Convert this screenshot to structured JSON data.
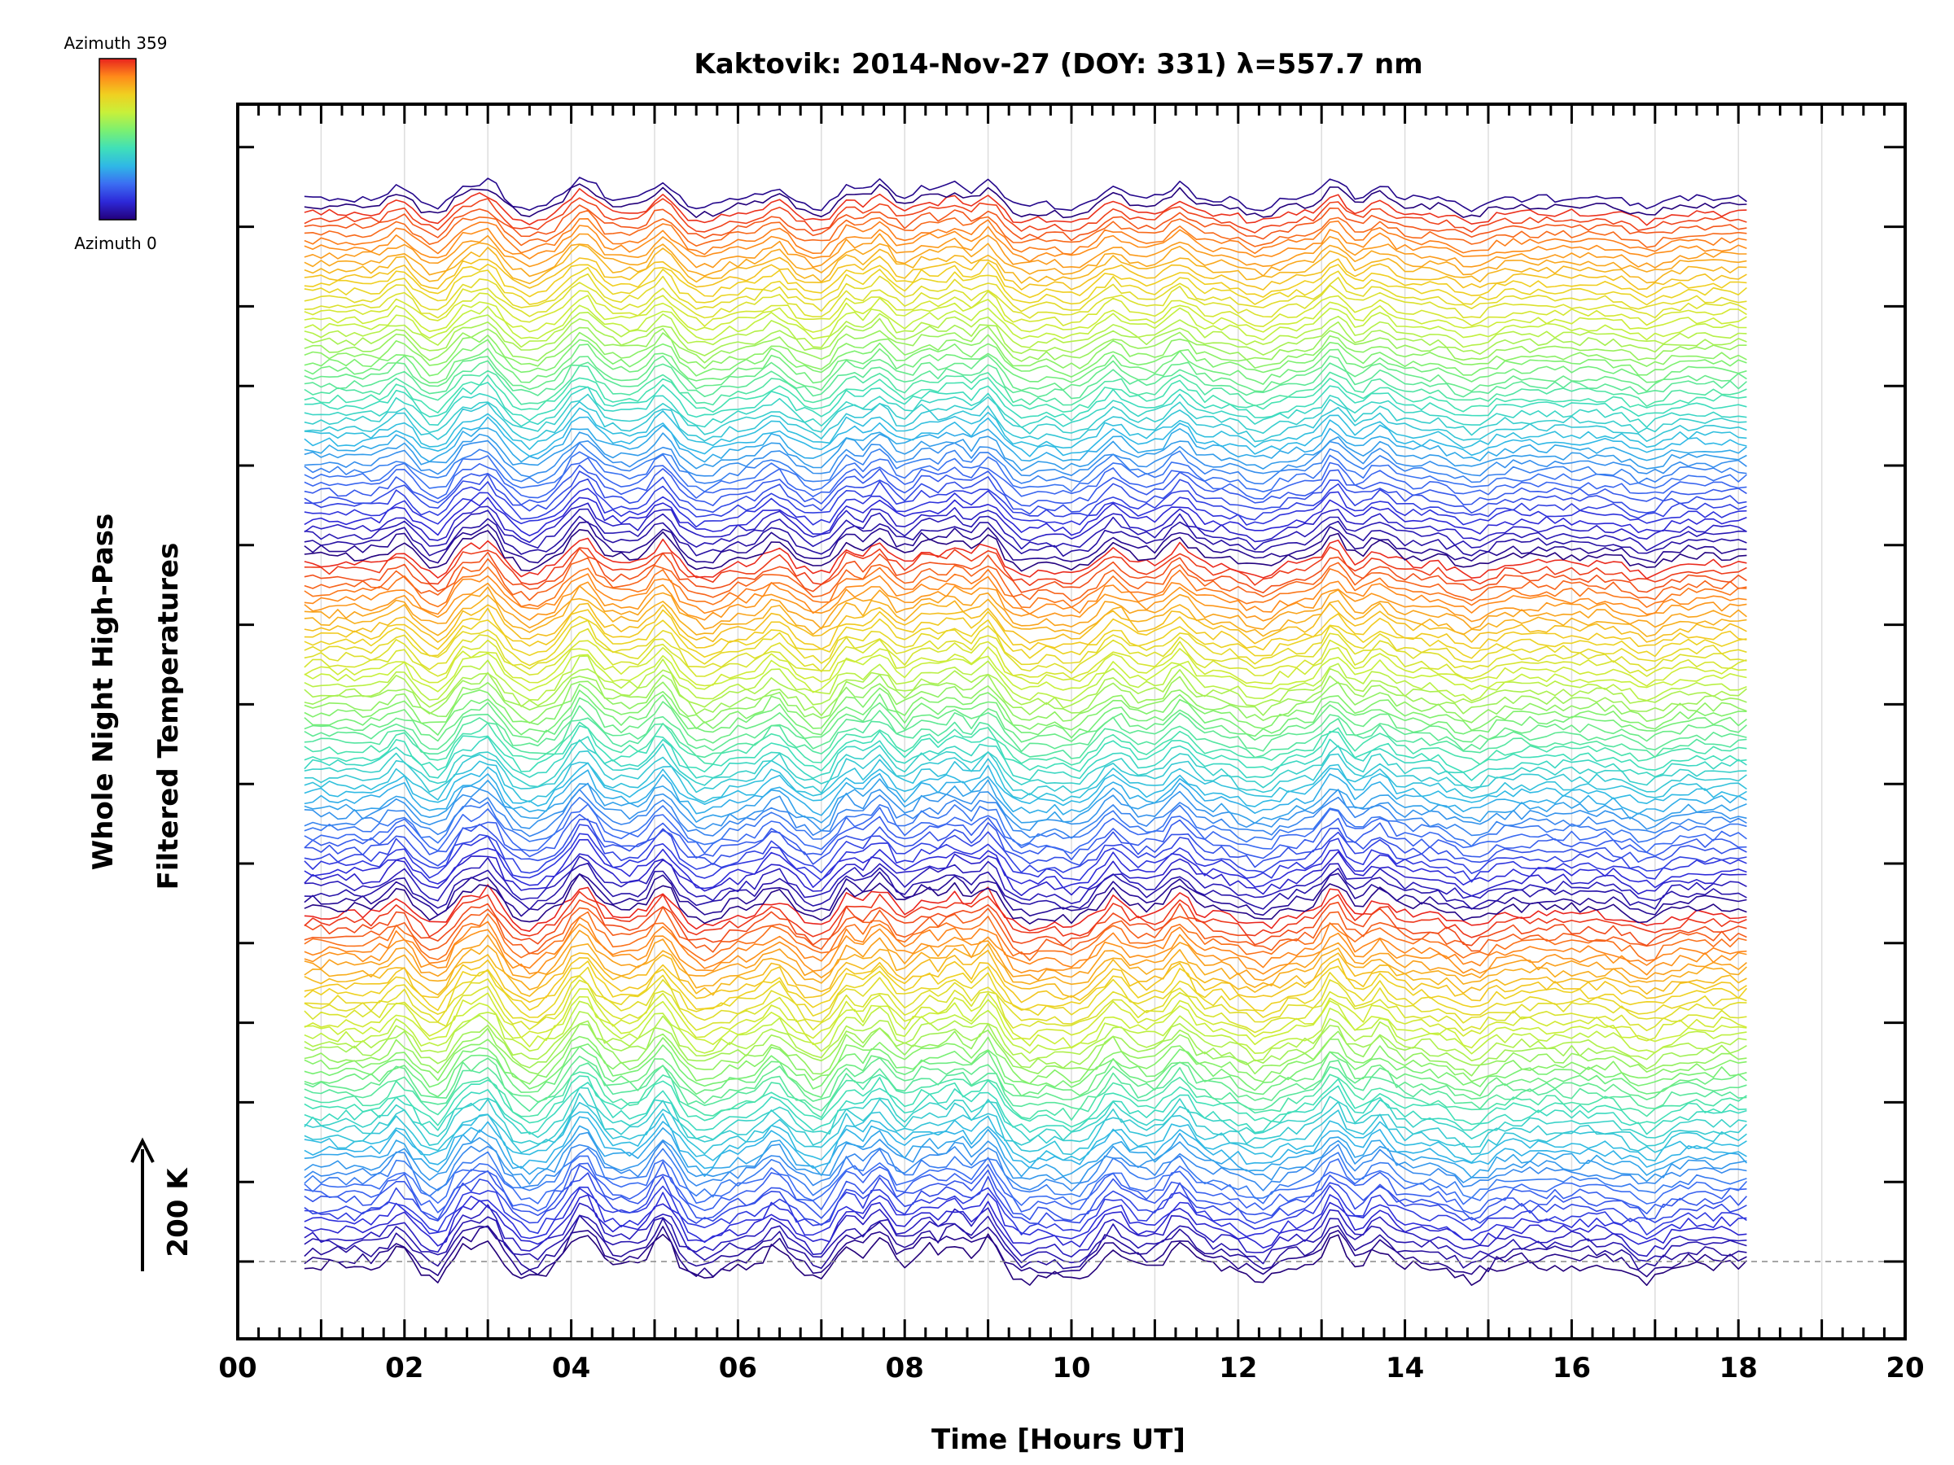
{
  "chart_data": {
    "type": "line",
    "title": "Kaktovik: 2014-Nov-27 (DOY: 331) λ=557.7 nm",
    "xlabel": "Time [Hours UT]",
    "ylabel_line1": "Whole Night High-Pass",
    "ylabel_line2": "Filtered Temperatures",
    "xlim": [
      0,
      20
    ],
    "x_tick_labels": [
      "00",
      "02",
      "04",
      "06",
      "08",
      "10",
      "12",
      "14",
      "16",
      "18",
      "20"
    ],
    "x_ticks": [
      0,
      2,
      4,
      6,
      8,
      10,
      12,
      14,
      16,
      18,
      20
    ],
    "time_range": [
      0.8,
      18.15
    ],
    "scale_bar_label": "200 K",
    "colorbar": {
      "label_top": "Azimuth 359",
      "label_bottom": "Azimuth 0",
      "colors": [
        "#23007a",
        "#2d28d8",
        "#3b6df2",
        "#2fb8e6",
        "#40e0b8",
        "#7cf070",
        "#c8f03a",
        "#f0d020",
        "#ff8a1a",
        "#e8221e"
      ]
    },
    "grid": true,
    "series_count": 360,
    "series_note_azimuth_range": [
      0,
      359
    ],
    "peak_times": [
      1.95,
      2.7,
      3.0,
      4.05,
      4.2,
      5.1,
      6.45,
      7.3,
      7.7,
      8.25,
      8.6,
      9.0,
      10.5,
      11.3,
      13.15,
      13.7
    ],
    "dip_times": [
      2.4,
      3.5,
      5.6,
      7.0,
      9.45,
      10.0,
      12.25,
      14.8,
      16.9
    ]
  }
}
